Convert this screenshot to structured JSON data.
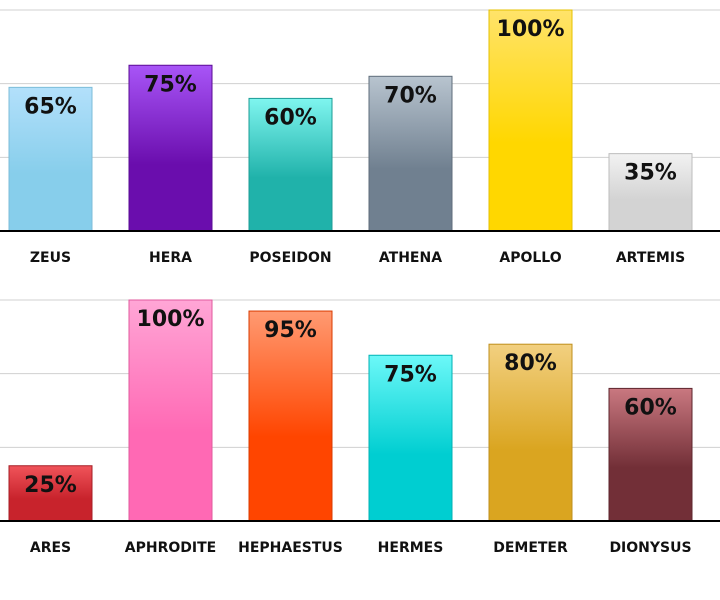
{
  "chart_data": [
    {
      "type": "bar",
      "categories": [
        "ZEUS",
        "HERA",
        "POSEIDON",
        "ATHENA",
        "APOLLO",
        "ARTEMIS"
      ],
      "values": [
        65,
        75,
        60,
        70,
        100,
        35
      ],
      "value_labels": [
        "65%",
        "75%",
        "60%",
        "70%",
        "100%",
        "35%"
      ],
      "colors": [
        {
          "top": "#b3e0fb",
          "bottom": "#87ceeb",
          "stroke": "#7cbcd8"
        },
        {
          "top": "#a855f7",
          "bottom": "#6a0dad",
          "stroke": "#5a0b94"
        },
        {
          "top": "#7ff5ef",
          "bottom": "#20b2aa",
          "stroke": "#1c9c95"
        },
        {
          "top": "#b8c4cf",
          "bottom": "#708090",
          "stroke": "#5f6d7b"
        },
        {
          "top": "#ffe36a",
          "bottom": "#ffd700",
          "stroke": "#e6c200"
        },
        {
          "top": "#f2f2f2",
          "bottom": "#d3d3d3",
          "stroke": "#bdbdbd"
        }
      ],
      "ylim": [
        0,
        100
      ],
      "grid": true,
      "title": "",
      "xlabel": "",
      "ylabel": ""
    },
    {
      "type": "bar",
      "categories": [
        "ARES",
        "APHRODITE",
        "HEPHAESTUS",
        "HERMES",
        "DEMETER",
        "DIONYSUS"
      ],
      "values": [
        25,
        100,
        95,
        75,
        80,
        60
      ],
      "value_labels": [
        "25%",
        "100%",
        "95%",
        "75%",
        "80%",
        "60%"
      ],
      "colors": [
        {
          "top": "#f0545a",
          "bottom": "#c8232c",
          "stroke": "#a61d24"
        },
        {
          "top": "#ffa6d6",
          "bottom": "#ff69b4",
          "stroke": "#e05a9e"
        },
        {
          "top": "#ff9a72",
          "bottom": "#ff4500",
          "stroke": "#d93b00"
        },
        {
          "top": "#6cf8f8",
          "bottom": "#00ced1",
          "stroke": "#00b2b4"
        },
        {
          "top": "#f2d080",
          "bottom": "#daa520",
          "stroke": "#bf8f1c"
        },
        {
          "top": "#c97880",
          "bottom": "#722f37",
          "stroke": "#5e262d"
        }
      ],
      "ylim": [
        0,
        100
      ],
      "grid": true,
      "title": "",
      "xlabel": "",
      "ylabel": ""
    }
  ]
}
